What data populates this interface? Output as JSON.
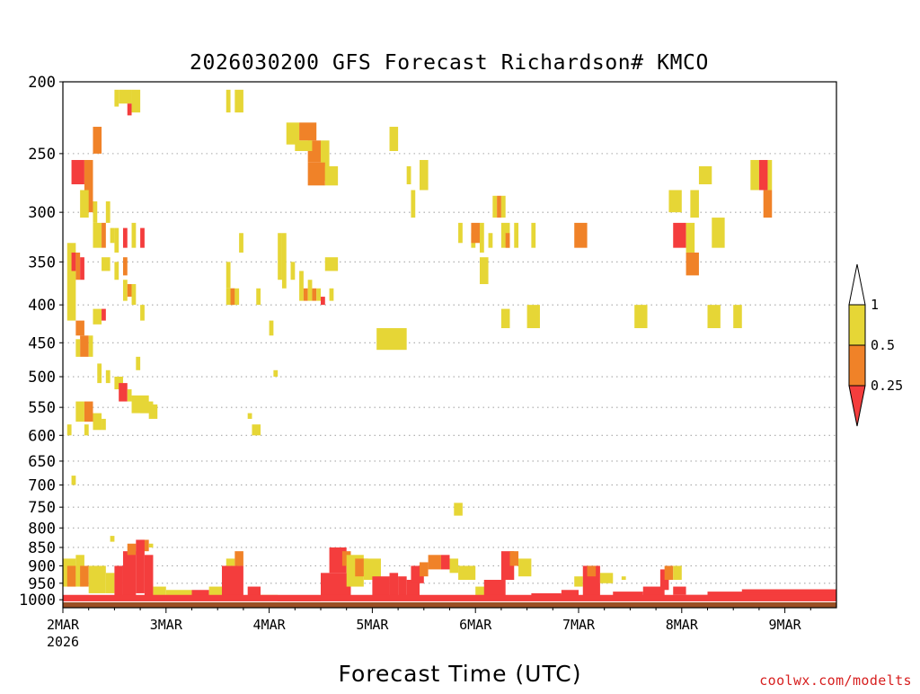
{
  "chart_data": {
    "type": "heatmap",
    "title": "2026030200 GFS Forecast Richardson# KMCO",
    "xlabel": "Forecast Time (UTC)",
    "ylabel": "",
    "credit": "coolwx.com/modelts",
    "y_ticks": [
      "200",
      "250",
      "300",
      "350",
      "400",
      "450",
      "500",
      "550",
      "600",
      "650",
      "700",
      "750",
      "800",
      "850",
      "900",
      "950",
      "1000"
    ],
    "x_ticks": [
      "2MAR",
      "3MAR",
      "4MAR",
      "5MAR",
      "6MAR",
      "7MAR",
      "8MAR",
      "9MAR"
    ],
    "x_subtick": "2026",
    "xlim_hours": [
      0,
      180
    ],
    "ylim_hpa": [
      1025,
      200
    ],
    "y_scale": "log-pressure",
    "grid": "dotted horizontal lines at pressure levels",
    "legend": {
      "placement": "right",
      "labels": [
        "1",
        "0.5",
        "0.25"
      ],
      "classes": [
        {
          "name": ">1",
          "color": "#ffffff"
        },
        {
          "name": "0.5-1",
          "color": "#e6d636"
        },
        {
          "name": "0.25-0.5",
          "color": "#f08228"
        },
        {
          "name": "<0.25",
          "color": "#f43d3d"
        }
      ]
    },
    "colors": {
      "yellow": "#e6d636",
      "orange": "#f08228",
      "red": "#f43d3d",
      "ground": "#9a4f24"
    },
    "cells": [
      [
        12,
        13,
        205,
        216,
        "yellow"
      ],
      [
        13,
        16,
        205,
        214,
        "yellow"
      ],
      [
        15,
        16,
        214,
        222,
        "red"
      ],
      [
        16,
        18,
        205,
        220,
        "yellow"
      ],
      [
        38,
        39,
        205,
        220,
        "yellow"
      ],
      [
        40,
        42,
        205,
        220,
        "yellow"
      ],
      [
        52,
        55,
        227,
        243,
        "yellow"
      ],
      [
        55,
        59,
        227,
        240,
        "orange"
      ],
      [
        57,
        60,
        240,
        257,
        "orange"
      ],
      [
        60,
        62,
        240,
        272,
        "yellow"
      ],
      [
        57,
        61,
        257,
        276,
        "orange"
      ],
      [
        61,
        64,
        260,
        276,
        "yellow"
      ],
      [
        54,
        58,
        240,
        248,
        "yellow"
      ],
      [
        76,
        78,
        230,
        248,
        "yellow"
      ],
      [
        80,
        81,
        260,
        275,
        "yellow"
      ],
      [
        81,
        82,
        280,
        305,
        "yellow"
      ],
      [
        83,
        85,
        255,
        280,
        "yellow"
      ],
      [
        95,
        96,
        320,
        335,
        "yellow"
      ],
      [
        97,
        99,
        345,
        375,
        "yellow"
      ],
      [
        2,
        5,
        255,
        275,
        "red"
      ],
      [
        5,
        7,
        255,
        300,
        "orange"
      ],
      [
        4,
        6,
        280,
        305,
        "yellow"
      ],
      [
        7,
        8,
        290,
        310,
        "yellow"
      ],
      [
        7,
        9,
        230,
        250,
        "orange"
      ],
      [
        7,
        9,
        310,
        335,
        "yellow"
      ],
      [
        9,
        10,
        310,
        335,
        "orange"
      ],
      [
        10,
        11,
        290,
        310,
        "yellow"
      ],
      [
        11,
        12,
        315,
        330,
        "yellow"
      ],
      [
        12,
        13,
        315,
        340,
        "yellow"
      ],
      [
        14,
        15,
        315,
        335,
        "red"
      ],
      [
        16,
        17,
        310,
        335,
        "yellow"
      ],
      [
        18,
        19,
        315,
        335,
        "red"
      ],
      [
        1,
        3,
        330,
        420,
        "yellow"
      ],
      [
        2,
        3,
        340,
        360,
        "red"
      ],
      [
        3,
        4,
        340,
        370,
        "orange"
      ],
      [
        4,
        5,
        345,
        370,
        "red"
      ],
      [
        9,
        11,
        345,
        360,
        "yellow"
      ],
      [
        12,
        13,
        350,
        370,
        "yellow"
      ],
      [
        14,
        15,
        345,
        365,
        "orange"
      ],
      [
        14,
        15,
        370,
        395,
        "yellow"
      ],
      [
        15,
        16,
        375,
        390,
        "orange"
      ],
      [
        16,
        17,
        375,
        400,
        "yellow"
      ],
      [
        18,
        19,
        400,
        420,
        "yellow"
      ],
      [
        7,
        9,
        405,
        425,
        "yellow"
      ],
      [
        9,
        10,
        405,
        420,
        "red"
      ],
      [
        3,
        5,
        420,
        440,
        "orange"
      ],
      [
        4,
        6,
        440,
        470,
        "orange"
      ],
      [
        6,
        7,
        440,
        470,
        "yellow"
      ],
      [
        3,
        4,
        445,
        470,
        "yellow"
      ],
      [
        8,
        9,
        480,
        510,
        "yellow"
      ],
      [
        10,
        11,
        490,
        510,
        "yellow"
      ],
      [
        12,
        14,
        500,
        520,
        "yellow"
      ],
      [
        13,
        15,
        510,
        540,
        "red"
      ],
      [
        15,
        16,
        520,
        540,
        "yellow"
      ],
      [
        16,
        20,
        530,
        560,
        "yellow"
      ],
      [
        18,
        21,
        540,
        560,
        "yellow"
      ],
      [
        20,
        22,
        545,
        570,
        "yellow"
      ],
      [
        3,
        5,
        540,
        575,
        "yellow"
      ],
      [
        5,
        7,
        540,
        575,
        "orange"
      ],
      [
        7,
        9,
        560,
        590,
        "yellow"
      ],
      [
        9,
        10,
        570,
        590,
        "yellow"
      ],
      [
        1,
        2,
        580,
        600,
        "yellow"
      ],
      [
        5,
        6,
        580,
        600,
        "yellow"
      ],
      [
        17,
        18,
        470,
        490,
        "yellow"
      ],
      [
        2,
        3,
        680,
        700,
        "yellow"
      ],
      [
        11,
        12,
        820,
        835,
        "yellow"
      ],
      [
        17,
        18,
        840,
        860,
        "yellow"
      ],
      [
        18,
        20,
        830,
        860,
        "orange"
      ],
      [
        20,
        21,
        840,
        850,
        "yellow"
      ],
      [
        38,
        39,
        350,
        380,
        "yellow"
      ],
      [
        38,
        40,
        380,
        400,
        "yellow"
      ],
      [
        39,
        40,
        380,
        400,
        "orange"
      ],
      [
        40,
        41,
        380,
        400,
        "yellow"
      ],
      [
        41,
        42,
        320,
        340,
        "yellow"
      ],
      [
        45,
        46,
        380,
        400,
        "yellow"
      ],
      [
        48,
        49,
        420,
        440,
        "yellow"
      ],
      [
        49,
        50,
        490,
        500,
        "yellow"
      ],
      [
        44,
        46,
        580,
        600,
        "yellow"
      ],
      [
        43,
        44,
        560,
        570,
        "yellow"
      ],
      [
        50,
        51,
        320,
        370,
        "yellow"
      ],
      [
        51,
        52,
        320,
        380,
        "yellow"
      ],
      [
        53,
        54,
        350,
        370,
        "yellow"
      ],
      [
        55,
        56,
        360,
        395,
        "yellow"
      ],
      [
        56,
        57,
        380,
        395,
        "orange"
      ],
      [
        57,
        58,
        370,
        395,
        "yellow"
      ],
      [
        58,
        59,
        380,
        395,
        "orange"
      ],
      [
        59,
        60,
        380,
        395,
        "yellow"
      ],
      [
        60,
        61,
        390,
        400,
        "red"
      ],
      [
        62,
        63,
        380,
        395,
        "yellow"
      ],
      [
        61,
        64,
        345,
        360,
        "yellow"
      ],
      [
        73,
        80,
        430,
        460,
        "yellow"
      ],
      [
        92,
        93,
        310,
        330,
        "yellow"
      ],
      [
        95,
        97,
        310,
        330,
        "orange"
      ],
      [
        97,
        98,
        310,
        340,
        "yellow"
      ],
      [
        99,
        100,
        320,
        335,
        "yellow"
      ],
      [
        100,
        101,
        285,
        305,
        "yellow"
      ],
      [
        101,
        102,
        285,
        305,
        "orange"
      ],
      [
        102,
        103,
        285,
        305,
        "yellow"
      ],
      [
        102,
        104,
        310,
        335,
        "yellow"
      ],
      [
        103,
        104,
        320,
        335,
        "orange"
      ],
      [
        105,
        106,
        310,
        335,
        "yellow"
      ],
      [
        109,
        110,
        310,
        335,
        "yellow"
      ],
      [
        102,
        104,
        405,
        430,
        "yellow"
      ],
      [
        108,
        111,
        400,
        430,
        "yellow"
      ],
      [
        119,
        122,
        310,
        335,
        "orange"
      ],
      [
        141,
        144,
        280,
        300,
        "yellow"
      ],
      [
        148,
        151,
        260,
        275,
        "yellow"
      ],
      [
        133,
        136,
        400,
        430,
        "yellow"
      ],
      [
        150,
        153,
        400,
        430,
        "yellow"
      ],
      [
        156,
        158,
        400,
        430,
        "yellow"
      ],
      [
        151,
        154,
        305,
        335,
        "yellow"
      ],
      [
        142,
        145,
        310,
        335,
        "red"
      ],
      [
        145,
        147,
        310,
        340,
        "yellow"
      ],
      [
        146,
        148,
        280,
        305,
        "yellow"
      ],
      [
        145,
        148,
        340,
        365,
        "orange"
      ],
      [
        160,
        162,
        255,
        280,
        "yellow"
      ],
      [
        162,
        164,
        255,
        280,
        "red"
      ],
      [
        164,
        165,
        255,
        280,
        "yellow"
      ],
      [
        163,
        165,
        280,
        305,
        "orange"
      ],
      [
        91,
        93,
        740,
        770,
        "yellow"
      ],
      [
        0,
        3,
        880,
        960,
        "yellow"
      ],
      [
        1,
        3,
        900,
        960,
        "orange"
      ],
      [
        3,
        5,
        870,
        960,
        "yellow"
      ],
      [
        4,
        6,
        900,
        960,
        "orange"
      ],
      [
        6,
        10,
        900,
        980,
        "yellow"
      ],
      [
        10,
        12,
        920,
        980,
        "yellow"
      ],
      [
        12,
        14,
        900,
        990,
        "red"
      ],
      [
        14,
        17,
        860,
        990,
        "red"
      ],
      [
        15,
        17,
        840,
        870,
        "orange"
      ],
      [
        17,
        19,
        830,
        980,
        "red"
      ],
      [
        19,
        21,
        870,
        990,
        "red"
      ],
      [
        21,
        24,
        960,
        990,
        "yellow"
      ],
      [
        24,
        30,
        970,
        995,
        "yellow"
      ],
      [
        30,
        34,
        970,
        1000,
        "red"
      ],
      [
        34,
        37,
        960,
        990,
        "yellow"
      ],
      [
        37,
        42,
        900,
        1000,
        "red"
      ],
      [
        38,
        40,
        880,
        900,
        "yellow"
      ],
      [
        40,
        42,
        860,
        900,
        "orange"
      ],
      [
        43,
        46,
        960,
        1000,
        "red"
      ],
      [
        46,
        50,
        985,
        1003,
        "yellow"
      ],
      [
        50,
        60,
        988,
        1005,
        "red"
      ],
      [
        60,
        67,
        920,
        1000,
        "red"
      ],
      [
        62,
        66,
        850,
        920,
        "red"
      ],
      [
        65,
        67,
        860,
        900,
        "orange"
      ],
      [
        66,
        70,
        870,
        960,
        "yellow"
      ],
      [
        68,
        71,
        880,
        930,
        "orange"
      ],
      [
        70,
        74,
        880,
        940,
        "yellow"
      ],
      [
        72,
        76,
        930,
        1000,
        "red"
      ],
      [
        76,
        78,
        920,
        1000,
        "red"
      ],
      [
        78,
        80,
        930,
        990,
        "red"
      ],
      [
        80,
        83,
        940,
        995,
        "red"
      ],
      [
        81,
        84,
        900,
        950,
        "red"
      ],
      [
        83,
        85,
        890,
        930,
        "orange"
      ],
      [
        85,
        88,
        870,
        910,
        "orange"
      ],
      [
        88,
        90,
        870,
        910,
        "red"
      ],
      [
        90,
        92,
        880,
        920,
        "yellow"
      ],
      [
        92,
        96,
        900,
        940,
        "yellow"
      ],
      [
        96,
        99,
        960,
        995,
        "yellow"
      ],
      [
        98,
        103,
        940,
        1000,
        "red"
      ],
      [
        102,
        105,
        860,
        940,
        "red"
      ],
      [
        104,
        106,
        860,
        900,
        "orange"
      ],
      [
        106,
        109,
        880,
        930,
        "yellow"
      ],
      [
        109,
        116,
        980,
        1000,
        "red"
      ],
      [
        116,
        120,
        970,
        1000,
        "red"
      ],
      [
        119,
        121,
        930,
        960,
        "yellow"
      ],
      [
        121,
        125,
        900,
        990,
        "red"
      ],
      [
        122,
        124,
        900,
        930,
        "orange"
      ],
      [
        125,
        128,
        920,
        950,
        "yellow"
      ],
      [
        128,
        135,
        975,
        1000,
        "red"
      ],
      [
        130,
        131,
        930,
        940,
        "yellow"
      ],
      [
        135,
        140,
        960,
        1000,
        "red"
      ],
      [
        139,
        141,
        910,
        970,
        "red"
      ],
      [
        140,
        142,
        900,
        940,
        "orange"
      ],
      [
        142,
        144,
        900,
        940,
        "yellow"
      ],
      [
        142,
        145,
        960,
        985,
        "red"
      ],
      [
        145,
        150,
        985,
        1000,
        "red"
      ],
      [
        150,
        180,
        975,
        1002,
        "red"
      ],
      [
        158,
        180,
        968,
        978,
        "red"
      ]
    ],
    "surface": {
      "red_band_hpa": [
        985,
        1005
      ],
      "ground_hpa": [
        1008,
        1025
      ]
    }
  }
}
